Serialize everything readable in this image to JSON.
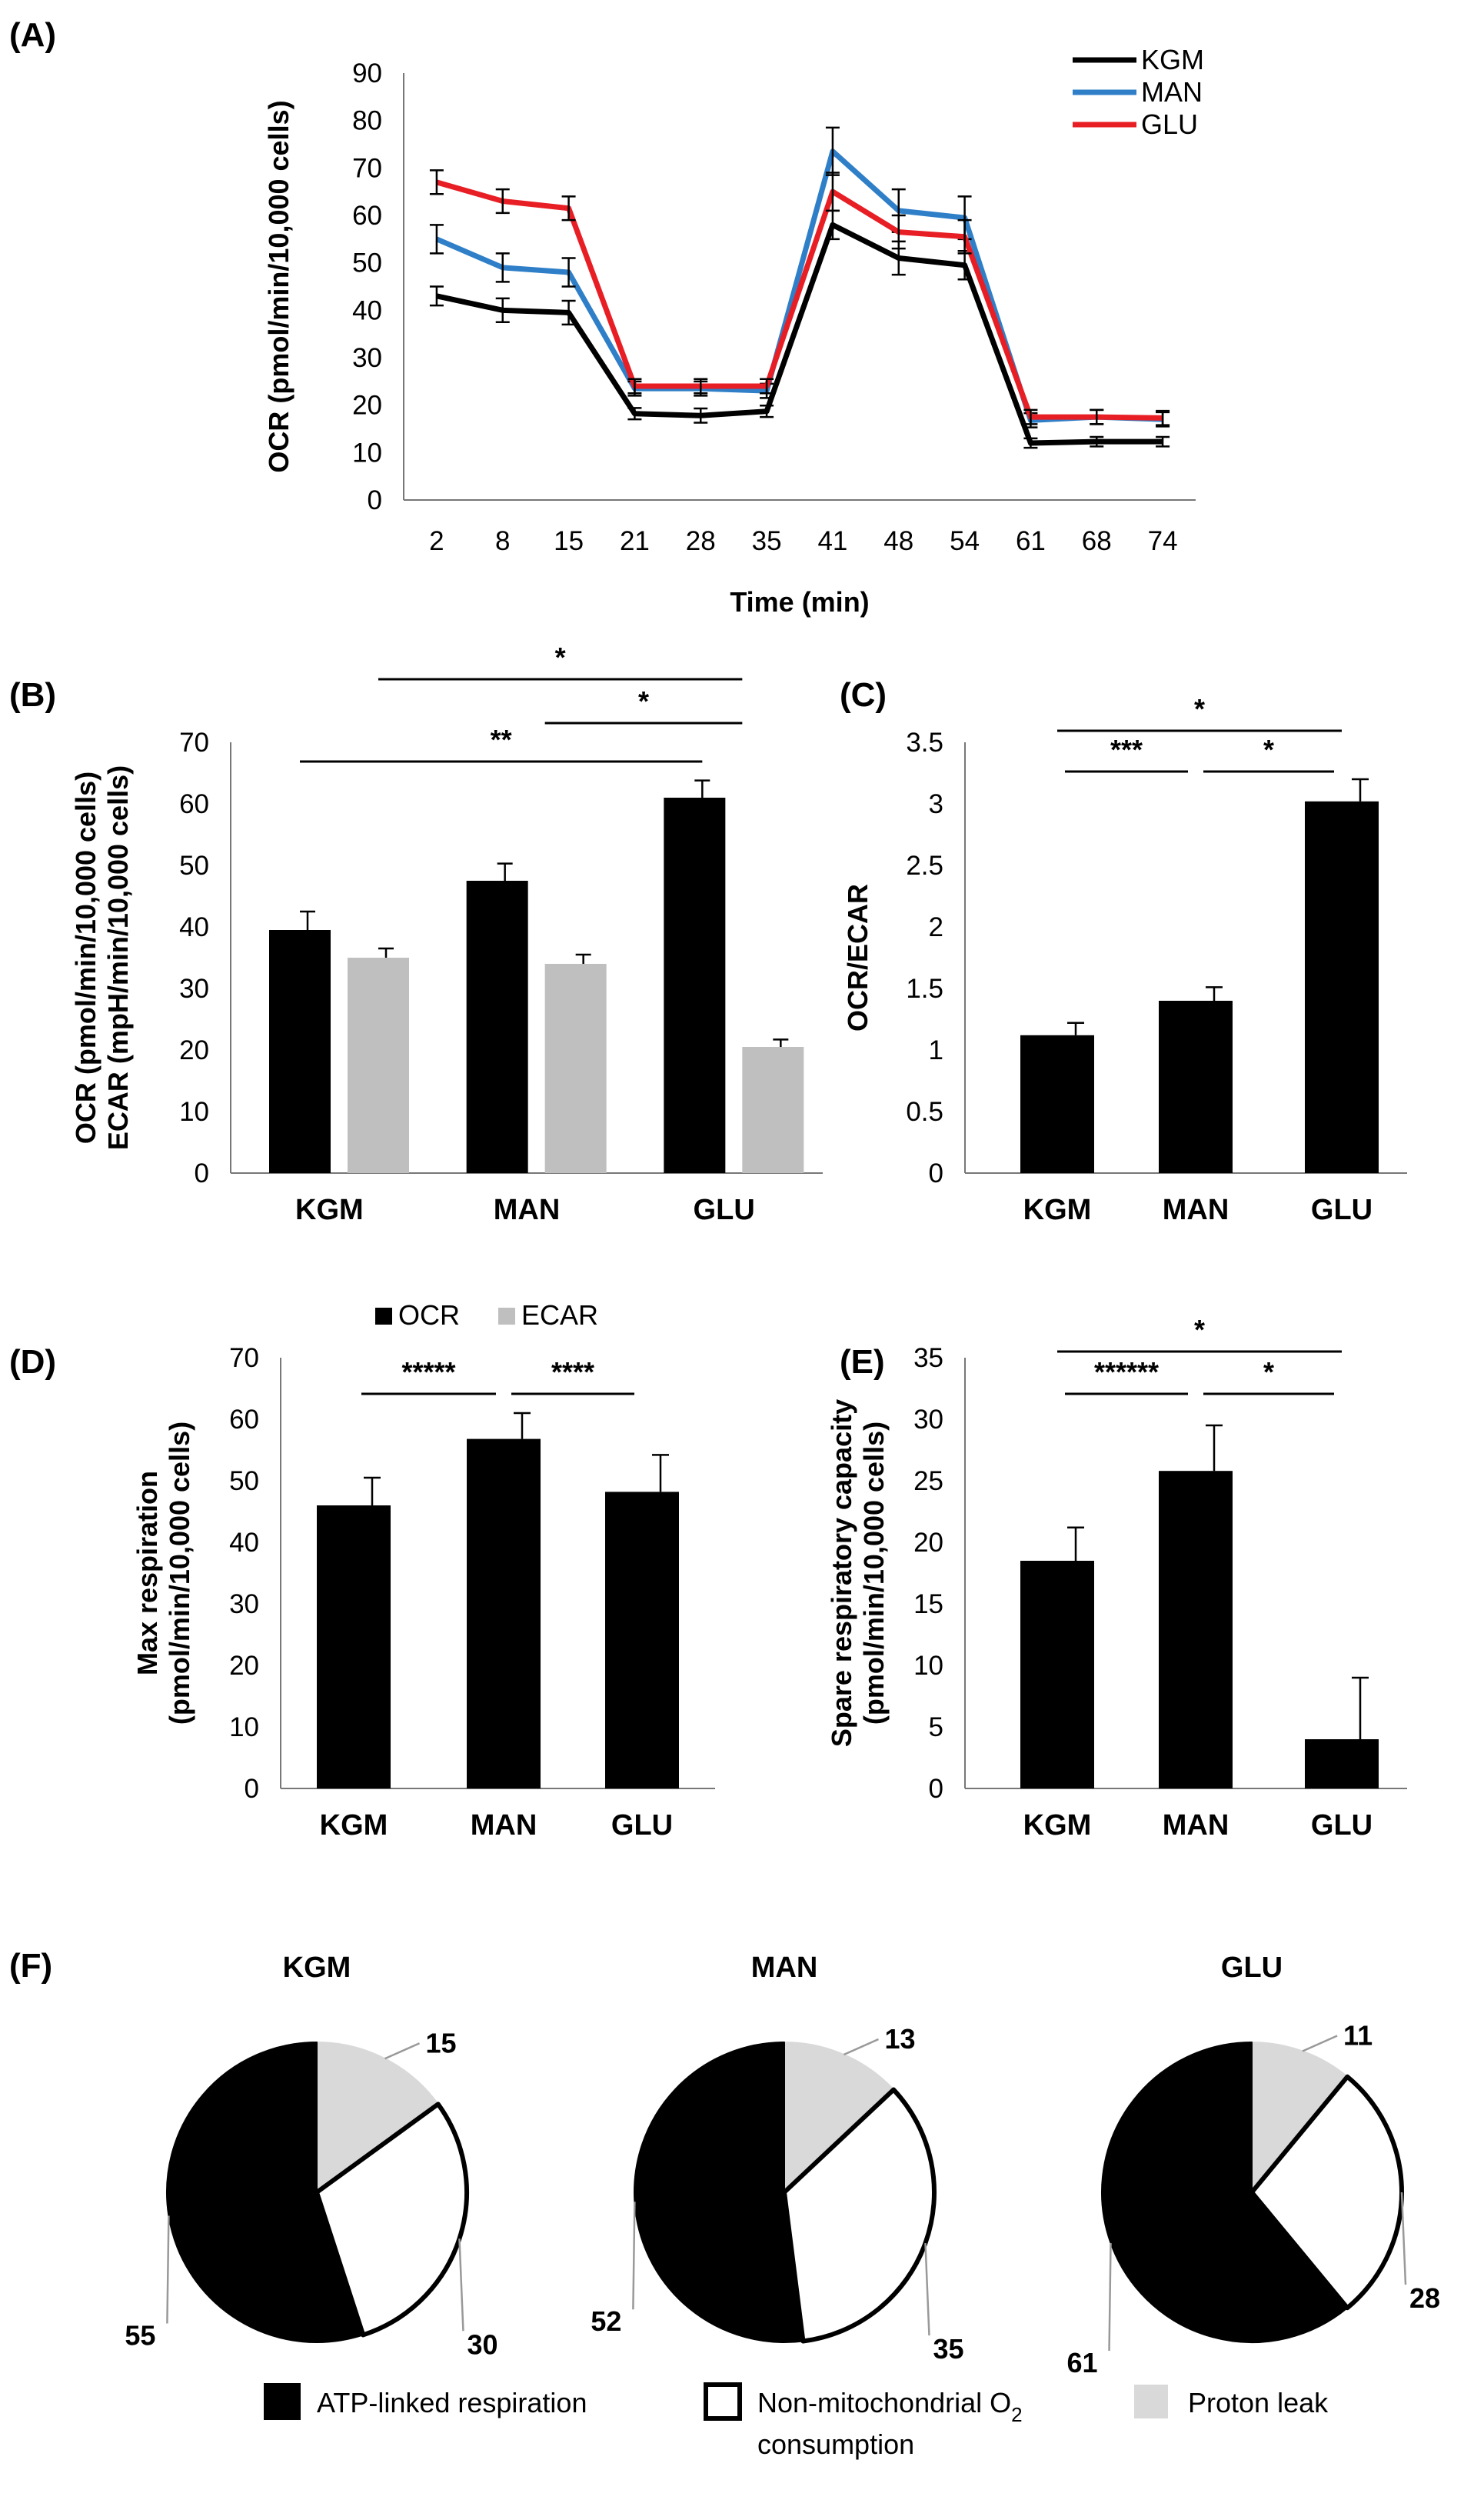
{
  "panel_labels": {
    "A": "(A)",
    "B": "(B)",
    "C": "(C)",
    "D": "(D)",
    "E": "(E)",
    "F": "(F)"
  },
  "colors": {
    "KGM": "#000000",
    "MAN": "#2f7fc8",
    "GLU": "#e81e25",
    "ecar": "#bfbfbf",
    "leak": "#d9d9d9",
    "nonmito": "#ffffff"
  },
  "chart_data": [
    {
      "id": "A",
      "type": "line",
      "xlabel": "Time (min)",
      "ylabel": "OCR (pmol/min/10,000 cells)",
      "ylim": [
        0,
        90
      ],
      "yticks": [
        0,
        10,
        20,
        30,
        40,
        50,
        60,
        70,
        80,
        90
      ],
      "x": [
        "2",
        "8",
        "15",
        "21",
        "28",
        "35",
        "41",
        "48",
        "54",
        "61",
        "68",
        "74"
      ],
      "series": [
        {
          "name": "KGM",
          "color": "#000000",
          "values": [
            43,
            40,
            39.5,
            18.2,
            17.8,
            18.7,
            58,
            51,
            49.5,
            12,
            12.3,
            12.3
          ],
          "errors": [
            2,
            2.5,
            2.5,
            1.2,
            1.5,
            1.2,
            3,
            3.5,
            3,
            1,
            1,
            1
          ]
        },
        {
          "name": "MAN",
          "color": "#2f7fc8",
          "values": [
            55,
            49,
            48,
            23.5,
            23.5,
            23,
            73.5,
            61,
            59.5,
            16.8,
            17.5,
            17
          ],
          "errors": [
            3,
            3,
            3,
            1.5,
            1.5,
            1.5,
            5,
            4.5,
            4.5,
            1.5,
            1.5,
            1.5
          ]
        },
        {
          "name": "GLU",
          "color": "#e81e25",
          "values": [
            67,
            63,
            61.5,
            24,
            24,
            24,
            65,
            56.5,
            55.5,
            17.5,
            17.5,
            17.3
          ],
          "errors": [
            2.5,
            2.5,
            2.5,
            1.5,
            1.5,
            1.5,
            4,
            3.5,
            3.5,
            1.5,
            1.5,
            1.5
          ]
        }
      ],
      "legend": [
        "KGM",
        "MAN",
        "GLU"
      ]
    },
    {
      "id": "B",
      "type": "bar",
      "ylabel_lines": [
        "OCR (pmol/min/10,000 cells)",
        "ECAR (mpH/min/10,000 cells)"
      ],
      "ylim": [
        0,
        70
      ],
      "yticks": [
        0,
        10,
        20,
        30,
        40,
        50,
        60,
        70
      ],
      "categories": [
        "KGM",
        "MAN",
        "GLU"
      ],
      "series": [
        {
          "name": "OCR",
          "color": "#000000",
          "values": [
            39.5,
            47.5,
            61
          ],
          "errors": [
            3,
            2.8,
            2.8
          ]
        },
        {
          "name": "ECAR",
          "color": "#bfbfbf",
          "values": [
            35,
            34,
            20.5
          ],
          "errors": [
            1.5,
            1.5,
            1.2
          ]
        }
      ],
      "significance": [
        {
          "label": "**",
          "from": "KGM-OCR",
          "to": "GLU-OCR"
        },
        {
          "label": "*",
          "from": "KGM-ECAR",
          "to": "GLU-ECAR"
        },
        {
          "label": "*",
          "from": "MAN-ECAR",
          "to": "GLU-ECAR"
        }
      ],
      "legend": [
        "OCR",
        "ECAR"
      ]
    },
    {
      "id": "C",
      "type": "bar",
      "ylabel": "OCR/ECAR",
      "ylim": [
        0,
        3.5
      ],
      "yticks": [
        "0",
        "0.5",
        "1",
        "1.5",
        "2",
        "2.5",
        "3",
        "3.5"
      ],
      "categories": [
        "KGM",
        "MAN",
        "GLU"
      ],
      "values": [
        1.12,
        1.4,
        3.02
      ],
      "errors": [
        0.1,
        0.11,
        0.18
      ],
      "significance": [
        {
          "label": "***",
          "from": "KGM",
          "to": "MAN"
        },
        {
          "label": "*",
          "from": "MAN",
          "to": "GLU"
        },
        {
          "label": "*",
          "from": "KGM",
          "to": "GLU"
        }
      ]
    },
    {
      "id": "D",
      "type": "bar",
      "ylabel_lines": [
        "Max respiration",
        "(pmol/min/10,000 cells)"
      ],
      "ylim": [
        0,
        70
      ],
      "yticks": [
        0,
        10,
        20,
        30,
        40,
        50,
        60,
        70
      ],
      "categories": [
        "KGM",
        "MAN",
        "GLU"
      ],
      "values": [
        46,
        56.8,
        48.2
      ],
      "errors": [
        4.5,
        4.2,
        6
      ],
      "significance": [
        {
          "label": "*****",
          "from": "KGM",
          "to": "MAN"
        },
        {
          "label": "****",
          "from": "MAN",
          "to": "GLU"
        }
      ]
    },
    {
      "id": "E",
      "type": "bar",
      "ylabel_lines": [
        "Spare respiratory capacity",
        "(pmol/min/10,000 cells)"
      ],
      "ylim": [
        0,
        35
      ],
      "yticks": [
        0,
        5,
        10,
        15,
        20,
        25,
        30,
        35
      ],
      "categories": [
        "KGM",
        "MAN",
        "GLU"
      ],
      "values": [
        18.5,
        25.8,
        4
      ],
      "errors": [
        2.7,
        3.7,
        5
      ],
      "significance": [
        {
          "label": "******",
          "from": "KGM",
          "to": "MAN"
        },
        {
          "label": "*",
          "from": "MAN",
          "to": "GLU"
        },
        {
          "label": "*",
          "from": "KGM",
          "to": "GLU"
        }
      ]
    },
    {
      "id": "F",
      "type": "pie",
      "pies": [
        {
          "title": "KGM",
          "slices": [
            {
              "name": "Proton leak",
              "value": 15,
              "color": "#d9d9d9"
            },
            {
              "name": "Non-mitochondrial O2 consumption",
              "value": 30,
              "color": "#ffffff"
            },
            {
              "name": "ATP-linked respiration",
              "value": 55,
              "color": "#000000"
            }
          ]
        },
        {
          "title": "MAN",
          "slices": [
            {
              "name": "Proton leak",
              "value": 13,
              "color": "#d9d9d9"
            },
            {
              "name": "Non-mitochondrial O2 consumption",
              "value": 35,
              "color": "#ffffff"
            },
            {
              "name": "ATP-linked respiration",
              "value": 52,
              "color": "#000000"
            }
          ]
        },
        {
          "title": "GLU",
          "slices": [
            {
              "name": "Proton leak",
              "value": 11,
              "color": "#d9d9d9"
            },
            {
              "name": "Non-mitochondrial O2 consumption",
              "value": 28,
              "color": "#ffffff"
            },
            {
              "name": "ATP-linked respiration",
              "value": 61,
              "color": "#000000"
            }
          ]
        }
      ],
      "legend": {
        "atp": "ATP-linked respiration",
        "nonmito_main": "Non-mitochondrial O",
        "nonmito_sub": "2",
        "nonmito_line2": "consumption",
        "leak": "Proton leak"
      }
    }
  ]
}
